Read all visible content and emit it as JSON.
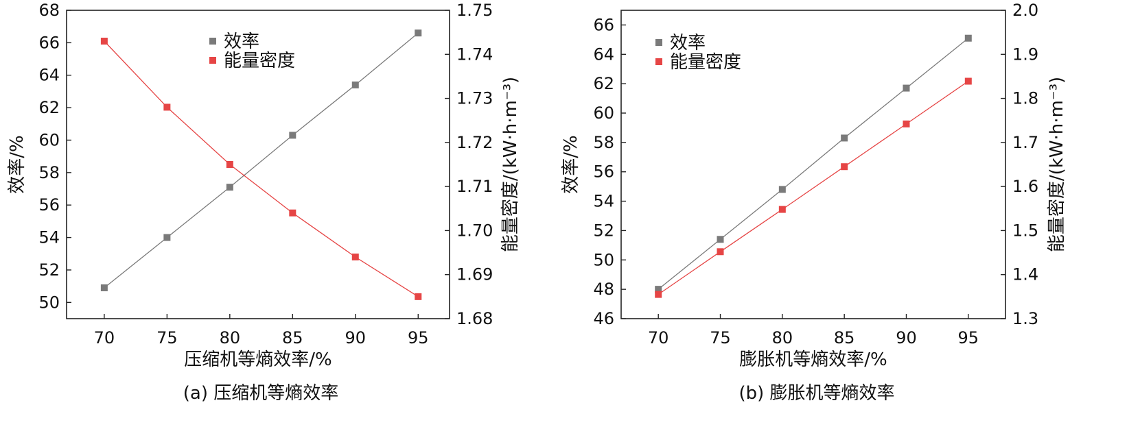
{
  "chart_data": [
    {
      "type": "line",
      "caption": "(a) 压缩机等熵效率",
      "xlabel": "压缩机等熵效率/%",
      "ylabel": "效率/%",
      "ylabel_right": "能量密度/(kW·h·m⁻³)",
      "x": [
        70,
        75,
        80,
        85,
        90,
        95
      ],
      "xlim": [
        67,
        97.5
      ],
      "xticks": [
        "70",
        "75",
        "80",
        "85",
        "90",
        "95"
      ],
      "ylim": [
        49,
        68
      ],
      "yticks": [
        "50",
        "52",
        "54",
        "56",
        "58",
        "60",
        "62",
        "64",
        "66",
        "68"
      ],
      "ylim_right": [
        1.68,
        1.75
      ],
      "yticks_right": [
        "1.68",
        "1.69",
        "1.70",
        "1.71",
        "1.72",
        "1.73",
        "1.74",
        "1.75"
      ],
      "legend_position": "top-center",
      "series": [
        {
          "name": "效率",
          "axis": "left",
          "color": "#7a7a7a",
          "values": [
            50.9,
            54.0,
            57.1,
            60.3,
            63.4,
            66.6
          ]
        },
        {
          "name": "能量密度",
          "axis": "right",
          "color": "#e64545",
          "values": [
            1.743,
            1.728,
            1.715,
            1.704,
            1.694,
            1.685
          ]
        }
      ]
    },
    {
      "type": "line",
      "caption": "(b) 膨胀机等熵效率",
      "xlabel": "膨胀机等熵效率/%",
      "ylabel": "效率/%",
      "ylabel_right": "能量密度/(kW·h·m⁻³)",
      "x": [
        70,
        75,
        80,
        85,
        90,
        95
      ],
      "xlim": [
        67,
        98
      ],
      "xticks": [
        "70",
        "75",
        "80",
        "85",
        "90",
        "95"
      ],
      "ylim": [
        46,
        67
      ],
      "yticks": [
        "46",
        "48",
        "50",
        "52",
        "54",
        "56",
        "58",
        "60",
        "62",
        "64",
        "66"
      ],
      "ylim_right": [
        1.3,
        2.0
      ],
      "yticks_right": [
        "1.3",
        "1.4",
        "1.5",
        "1.6",
        "1.7",
        "1.8",
        "1.9",
        "2.0"
      ],
      "legend_position": "top-left",
      "series": [
        {
          "name": "效率",
          "axis": "left",
          "color": "#7a7a7a",
          "values": [
            48.0,
            51.4,
            54.8,
            58.3,
            61.7,
            65.1
          ]
        },
        {
          "name": "能量密度",
          "axis": "right",
          "color": "#e64545",
          "values": [
            1.355,
            1.452,
            1.548,
            1.645,
            1.742,
            1.839
          ]
        }
      ]
    }
  ]
}
